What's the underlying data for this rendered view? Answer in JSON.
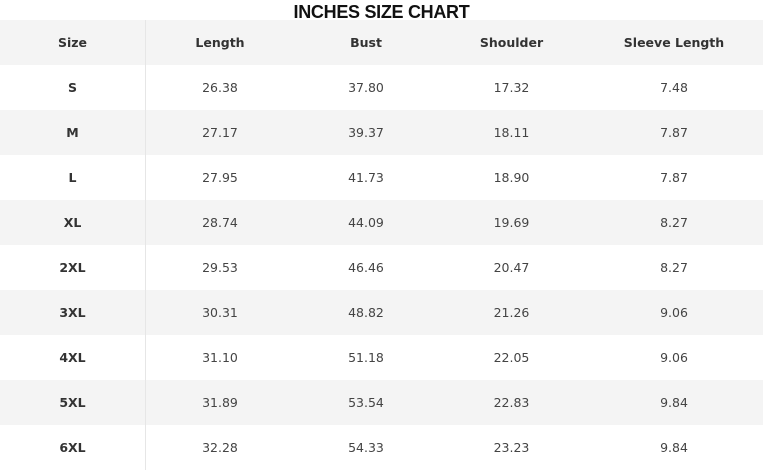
{
  "title": "INCHES SIZE CHART",
  "columns": [
    "Size",
    "Length",
    "Bust",
    "Shoulder",
    "Sleeve Length"
  ],
  "rows": [
    [
      "S",
      "26.38",
      "37.80",
      "17.32",
      "7.48"
    ],
    [
      "M",
      "27.17",
      "39.37",
      "18.11",
      "7.87"
    ],
    [
      "L",
      "27.95",
      "41.73",
      "18.90",
      "7.87"
    ],
    [
      "XL",
      "28.74",
      "44.09",
      "19.69",
      "8.27"
    ],
    [
      "2XL",
      "29.53",
      "46.46",
      "20.47",
      "8.27"
    ],
    [
      "3XL",
      "30.31",
      "48.82",
      "21.26",
      "9.06"
    ],
    [
      "4XL",
      "31.10",
      "51.18",
      "22.05",
      "9.06"
    ],
    [
      "5XL",
      "31.89",
      "53.54",
      "22.83",
      "9.84"
    ],
    [
      "6XL",
      "32.28",
      "54.33",
      "23.23",
      "9.84"
    ]
  ]
}
